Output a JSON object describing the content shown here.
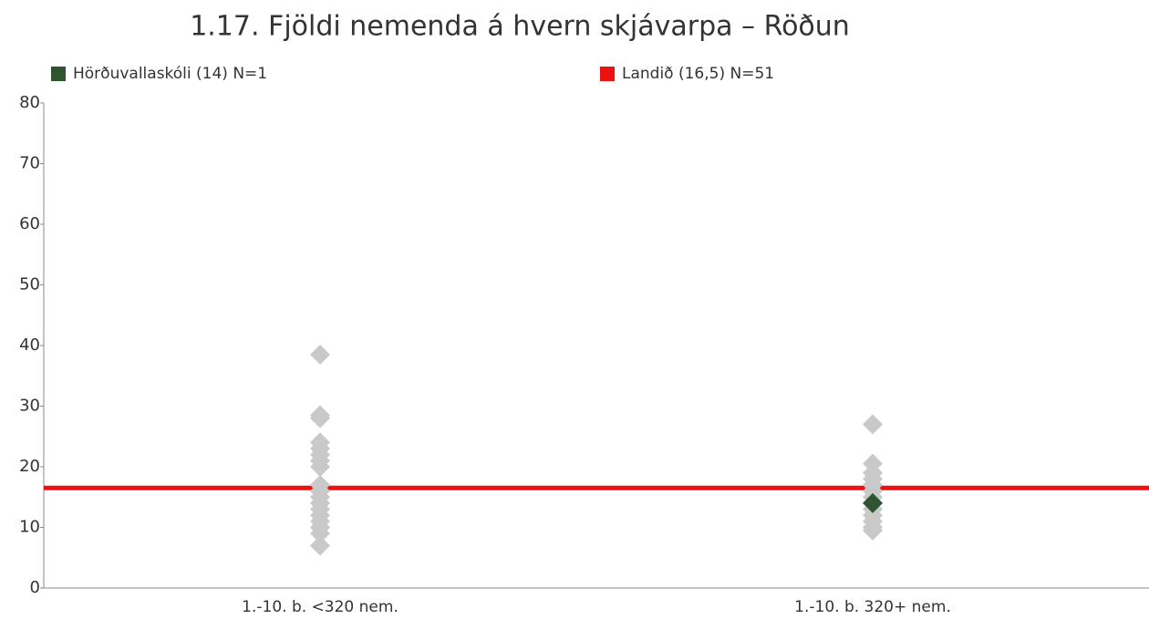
{
  "chart_data": {
    "type": "strip",
    "title": "1.17. Fjöldi nemenda á hvern skjávarpa – Röðun",
    "categories": [
      "1.-10. b. <320 nem.",
      "1.-10. b. 320+ nem."
    ],
    "ylim": [
      0,
      80
    ],
    "yticks": [
      0,
      10,
      20,
      30,
      40,
      50,
      60,
      70,
      80
    ],
    "series": [
      {
        "color": "#c9c9c9",
        "values": [
          [
            38.5,
            28.5,
            28,
            24,
            23,
            22,
            21,
            20,
            17,
            16,
            15,
            14,
            13,
            12,
            11,
            10,
            9,
            7
          ],
          [
            27,
            20.5,
            19,
            18,
            17,
            16,
            15,
            13,
            12,
            11,
            10,
            9.5
          ]
        ]
      },
      {
        "name": "Hörðuvallaskóli (14) N=1",
        "color": "#2e5530",
        "values": [
          [],
          [
            14
          ]
        ]
      }
    ],
    "reference_line": {
      "name": "Landið (16,5) N=51",
      "color": "#ee1111",
      "value": 16.5
    }
  }
}
